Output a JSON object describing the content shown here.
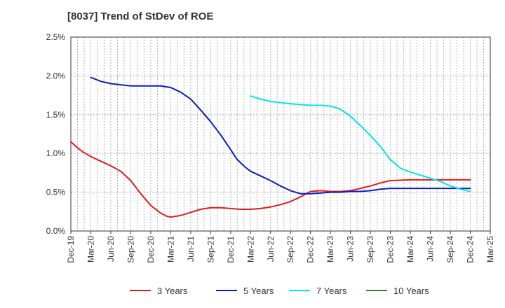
{
  "chart_data": {
    "type": "line",
    "title": "[8037]  Trend of StDev of ROE",
    "xlabel": "",
    "ylabel": "",
    "x_ticks": [
      "Dec-19",
      "Mar-20",
      "Jun-20",
      "Sep-20",
      "Dec-20",
      "Mar-21",
      "Jun-21",
      "Sep-21",
      "Dec-21",
      "Mar-22",
      "Jun-22",
      "Sep-22",
      "Dec-22",
      "Mar-23",
      "Jun-23",
      "Sep-23",
      "Dec-23",
      "Mar-24",
      "Jun-24",
      "Sep-24",
      "Dec-24",
      "Mar-25"
    ],
    "y_ticks": [
      "0.0%",
      "0.5%",
      "1.0%",
      "1.5%",
      "2.0%",
      "2.5%"
    ],
    "ylim": [
      0,
      2.5
    ],
    "grid": true,
    "legend_position": "bottom",
    "series": [
      {
        "name": "3 Years",
        "color": "#e31a1c",
        "points": [
          [
            0,
            1.15
          ],
          [
            0.3,
            1.08
          ],
          [
            0.6,
            1.02
          ],
          [
            1,
            0.96
          ],
          [
            1.5,
            0.9
          ],
          [
            2,
            0.84
          ],
          [
            2.5,
            0.77
          ],
          [
            3,
            0.65
          ],
          [
            3.5,
            0.48
          ],
          [
            4,
            0.33
          ],
          [
            4.5,
            0.23
          ],
          [
            4.8,
            0.19
          ],
          [
            5,
            0.18
          ],
          [
            5.5,
            0.2
          ],
          [
            6,
            0.24
          ],
          [
            6.5,
            0.28
          ],
          [
            7,
            0.3
          ],
          [
            7.5,
            0.3
          ],
          [
            8,
            0.29
          ],
          [
            8.5,
            0.28
          ],
          [
            9,
            0.28
          ],
          [
            9.5,
            0.29
          ],
          [
            10,
            0.31
          ],
          [
            10.5,
            0.34
          ],
          [
            11,
            0.38
          ],
          [
            11.5,
            0.44
          ],
          [
            12,
            0.51
          ],
          [
            12.5,
            0.52
          ],
          [
            13,
            0.51
          ],
          [
            13.5,
            0.51
          ],
          [
            14,
            0.52
          ],
          [
            14.5,
            0.55
          ],
          [
            15,
            0.58
          ],
          [
            15.5,
            0.62
          ],
          [
            16,
            0.65
          ],
          [
            17,
            0.66
          ],
          [
            18,
            0.66
          ],
          [
            19,
            0.66
          ],
          [
            20,
            0.66
          ]
        ]
      },
      {
        "name": "5 Years",
        "color": "#0a1ebf",
        "points": [
          [
            1,
            1.98
          ],
          [
            1.5,
            1.93
          ],
          [
            2,
            1.9
          ],
          [
            3,
            1.87
          ],
          [
            4,
            1.87
          ],
          [
            4.5,
            1.87
          ],
          [
            5,
            1.85
          ],
          [
            5.5,
            1.79
          ],
          [
            6,
            1.7
          ],
          [
            6.5,
            1.56
          ],
          [
            7,
            1.41
          ],
          [
            7.5,
            1.24
          ],
          [
            8,
            1.05
          ],
          [
            8.3,
            0.93
          ],
          [
            8.7,
            0.83
          ],
          [
            9,
            0.77
          ],
          [
            9.5,
            0.71
          ],
          [
            10,
            0.65
          ],
          [
            10.5,
            0.58
          ],
          [
            11,
            0.52
          ],
          [
            11.5,
            0.48
          ],
          [
            12,
            0.48
          ],
          [
            12.5,
            0.49
          ],
          [
            13,
            0.5
          ],
          [
            13.5,
            0.5
          ],
          [
            14,
            0.51
          ],
          [
            14.5,
            0.51
          ],
          [
            15,
            0.52
          ],
          [
            15.5,
            0.54
          ],
          [
            16,
            0.55
          ],
          [
            17,
            0.55
          ],
          [
            18,
            0.55
          ],
          [
            19,
            0.55
          ],
          [
            20,
            0.55
          ]
        ]
      },
      {
        "name": "7 Years",
        "color": "#00e5e5",
        "points": [
          [
            9,
            1.74
          ],
          [
            9.5,
            1.7
          ],
          [
            10,
            1.67
          ],
          [
            11,
            1.64
          ],
          [
            11.5,
            1.63
          ],
          [
            12,
            1.62
          ],
          [
            12.5,
            1.62
          ],
          [
            13,
            1.61
          ],
          [
            13.5,
            1.57
          ],
          [
            14,
            1.48
          ],
          [
            14.5,
            1.36
          ],
          [
            15,
            1.23
          ],
          [
            15.5,
            1.09
          ],
          [
            16,
            0.92
          ],
          [
            16.5,
            0.81
          ],
          [
            17,
            0.76
          ],
          [
            17.5,
            0.72
          ],
          [
            18,
            0.68
          ],
          [
            18.5,
            0.64
          ],
          [
            19,
            0.58
          ],
          [
            19.5,
            0.54
          ],
          [
            20,
            0.51
          ]
        ]
      },
      {
        "name": "10 Years",
        "color": "#2a8a2a",
        "points": []
      }
    ]
  }
}
